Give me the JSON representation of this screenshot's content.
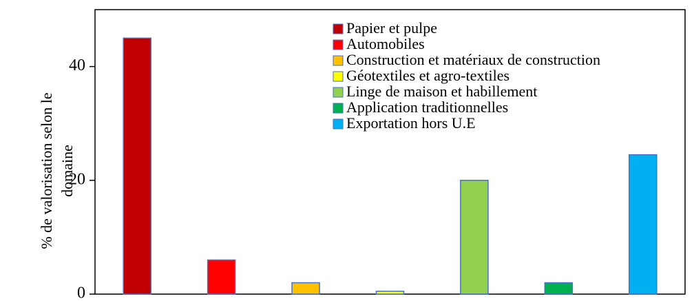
{
  "chart_data": {
    "type": "bar",
    "ylabel": [
      "% de valorisation selon le",
      "domaine"
    ],
    "categories": [
      "Papier et pulpe",
      "Automobiles",
      "Construction et matériaux de construction",
      "Géotextiles et agro-textiles",
      "Linge de maison et habillement",
      "Application traditionnelles",
      "Exportation hors U.E"
    ],
    "values": [
      45,
      6,
      2,
      0.5,
      20,
      2,
      24.5
    ],
    "colors": [
      "#c00000",
      "#ff0000",
      "#ffc000",
      "#ffff00",
      "#92d050",
      "#00b050",
      "#00b0f0"
    ],
    "ylim": [
      0,
      50
    ],
    "yticks": [
      0,
      20,
      40
    ],
    "grid": false,
    "legend": "top-right"
  }
}
